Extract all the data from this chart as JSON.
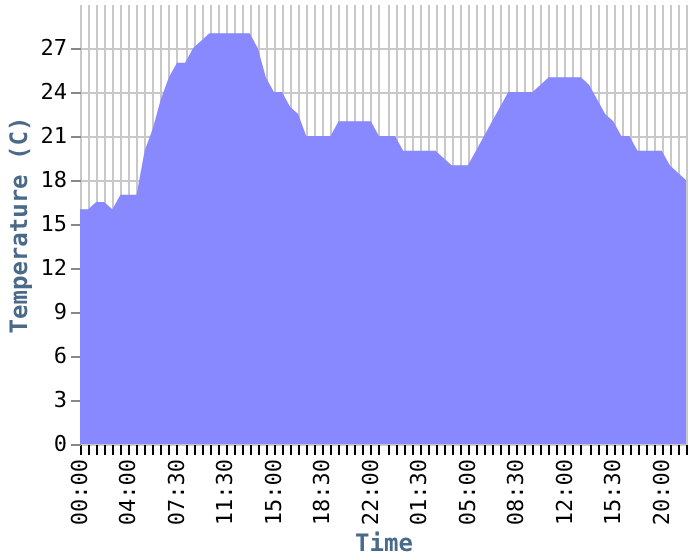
{
  "chart_data": {
    "type": "area",
    "xlabel": "Time",
    "ylabel": "Temperature (C)",
    "categories": [
      "00:00",
      null,
      null,
      null,
      null,
      null,
      "04:00",
      null,
      null,
      null,
      null,
      null,
      "07:30",
      null,
      null,
      null,
      null,
      null,
      "11:30",
      null,
      null,
      null,
      null,
      null,
      "15:00",
      null,
      null,
      null,
      null,
      null,
      "18:30",
      null,
      null,
      null,
      null,
      null,
      "22:00",
      null,
      null,
      null,
      null,
      null,
      "01:30",
      null,
      null,
      null,
      null,
      null,
      "05:00",
      null,
      null,
      null,
      null,
      null,
      "08:30",
      null,
      null,
      null,
      null,
      null,
      "12:00",
      null,
      null,
      null,
      null,
      null,
      "15:30",
      null,
      null,
      null,
      null,
      null,
      "20:00",
      null,
      null,
      null
    ],
    "values": [
      16,
      16,
      16.5,
      16.5,
      16,
      17,
      17,
      17,
      20,
      21.5,
      23.5,
      25,
      26,
      26,
      27,
      27.5,
      28,
      28,
      28,
      28,
      28,
      28,
      27,
      25,
      24,
      24,
      23,
      22.5,
      21,
      21,
      21,
      21,
      22,
      22,
      22,
      22,
      22,
      21,
      21,
      21,
      20,
      20,
      20,
      20,
      20,
      19.5,
      19,
      19,
      19,
      20,
      21,
      22,
      23,
      24,
      24,
      24,
      24,
      24.5,
      25,
      25,
      25,
      25,
      25,
      24.5,
      23.5,
      22.5,
      22,
      21,
      21,
      20,
      20,
      20,
      20,
      19,
      18.5,
      18
    ],
    "color": "#8888ff",
    "ylim": [
      0,
      30
    ],
    "yticks": [
      0,
      3,
      6,
      9,
      12,
      15,
      18,
      21,
      24,
      27
    ],
    "grid": true
  }
}
